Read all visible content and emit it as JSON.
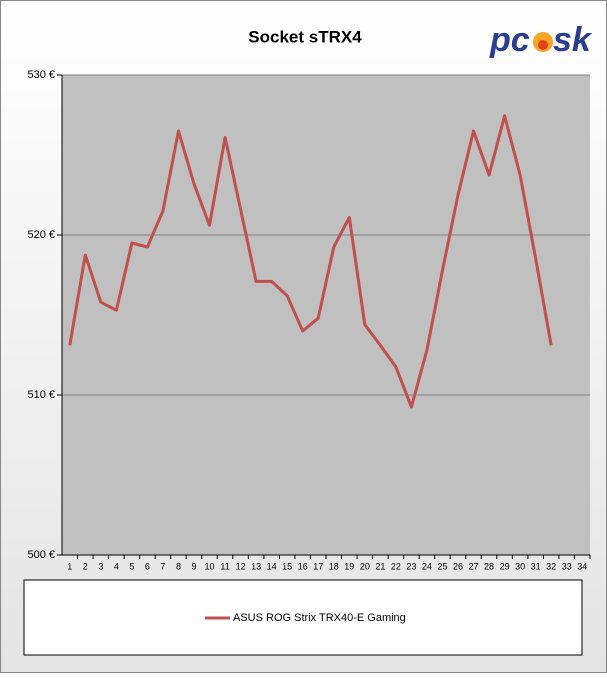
{
  "chart_data": {
    "type": "line",
    "title": "Socket sTRX4",
    "logo": [
      "pc",
      "sk"
    ],
    "categories": [
      "1",
      "2",
      "3",
      "4",
      "5",
      "6",
      "7",
      "8",
      "9",
      "10",
      "11",
      "12",
      "13",
      "14",
      "15",
      "16",
      "17",
      "18",
      "19",
      "20",
      "21",
      "22",
      "23",
      "24",
      "25",
      "26",
      "27",
      "28",
      "29",
      "30",
      "31",
      "32",
      "33",
      "34"
    ],
    "series": [
      {
        "name": "ASUS ROG Strix TRX40-E Gaming",
        "color": "#c0504d",
        "values": [
          513.1,
          518.75,
          515.8,
          515.3,
          519.5,
          519.25,
          521.5,
          526.5,
          523.2,
          520.6,
          526.1,
          521.6,
          517.1,
          517.1,
          516.2,
          514.0,
          514.8,
          519.25,
          521.1,
          514.4,
          513.1,
          511.75,
          509.25,
          512.8,
          517.8,
          522.5,
          526.5,
          523.75,
          527.45,
          523.75,
          518.55,
          513.1,
          null,
          null
        ]
      }
    ],
    "ylim": [
      500,
      530
    ],
    "yticks": [
      {
        "value": 500,
        "label": "500 €"
      },
      {
        "value": 510,
        "label": "510 €"
      },
      {
        "value": 520,
        "label": "520 €"
      },
      {
        "value": 530,
        "label": "530 €"
      }
    ],
    "grid": true,
    "plot_background": "#c0c0c0",
    "legend": "bottom"
  }
}
